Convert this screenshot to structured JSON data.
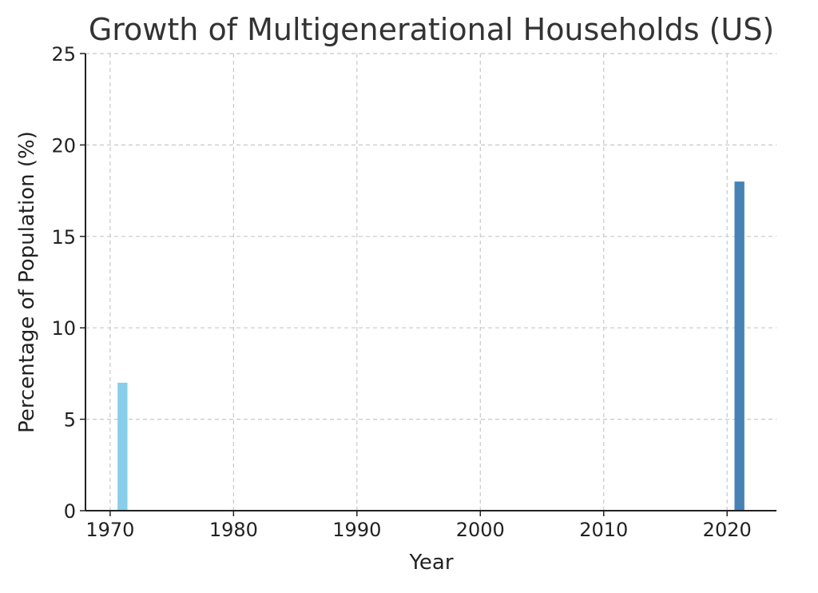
{
  "chart_data": {
    "type": "bar",
    "title": "Growth of Multigenerational Households (US)",
    "xlabel": "Year",
    "ylabel": "Percentage of Population (%)",
    "x": [
      1971,
      2021
    ],
    "values": [
      7,
      18
    ],
    "bar_colors": [
      "#87ceeb",
      "#4682b4"
    ],
    "xlim": [
      1968,
      2024
    ],
    "ylim": [
      0,
      25
    ],
    "xticks": [
      1970,
      1980,
      1990,
      2000,
      2010,
      2020
    ],
    "yticks": [
      0,
      5,
      10,
      15,
      20,
      25
    ],
    "grid": true,
    "legend": "none"
  }
}
